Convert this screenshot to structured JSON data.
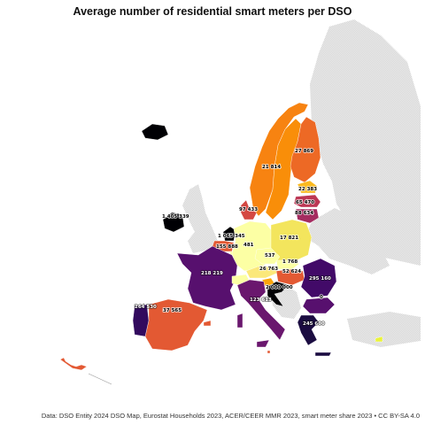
{
  "title": "Average number of residential smart meters per DSO",
  "footer": "Data: DSO Entity 2024 DSO Map, Eurostat Households 2023, ACER/CEER MMR 2023, smart meter share 2023 • CC BY-SA 4.0",
  "colors": {
    "no_data": "#e3e3e3",
    "land_out": "#dcdcdc",
    "sea": "#ffffff"
  },
  "map_data": {
    "type": "choropleth",
    "regions": [
      {
        "id": "ireland",
        "value": "1 405 339",
        "color": "#000004"
      },
      {
        "id": "iceland",
        "value": "",
        "color": "#000004"
      },
      {
        "id": "norway",
        "value": "21 814",
        "color": "#f78311"
      },
      {
        "id": "sweden",
        "value": "",
        "color": "#f98e09"
      },
      {
        "id": "finland",
        "value": "27 869",
        "color": "#ed6925"
      },
      {
        "id": "estonia",
        "value": "22 383",
        "color": "#fbb91f"
      },
      {
        "id": "latvia",
        "value": "65 470",
        "color": "#bc3754"
      },
      {
        "id": "lithuania",
        "value": "88 634",
        "color": "#a52c60"
      },
      {
        "id": "denmark",
        "value": "97 433",
        "color": "#d44842"
      },
      {
        "id": "netherlands",
        "value": "1 065 345",
        "color": "#000004"
      },
      {
        "id": "belgium",
        "value": "155 888",
        "color": "#e35933"
      },
      {
        "id": "luxembourg",
        "value": "",
        "color": "#fcffa4"
      },
      {
        "id": "germany",
        "value": "481",
        "color": "#fcffa4"
      },
      {
        "id": "poland",
        "value": "17 821",
        "color": "#f3e55d"
      },
      {
        "id": "czechia",
        "value": "537",
        "color": "#fcffa4"
      },
      {
        "id": "slovakia",
        "value": "1 768",
        "color": "#fcffa4"
      },
      {
        "id": "austria",
        "value": "",
        "color": "#fbe87a"
      },
      {
        "id": "hungary",
        "value": "52 624",
        "color": "#e35933"
      },
      {
        "id": "slovenia",
        "value": "26 763",
        "color": "#fca50a"
      },
      {
        "id": "croatia",
        "value": "",
        "color": "#000004"
      },
      {
        "id": "romania",
        "value": "295 160",
        "color": "#420a68"
      },
      {
        "id": "bulgaria",
        "value": "",
        "color": "#57106e"
      },
      {
        "id": "france",
        "value": "218 219",
        "color": "#57106e"
      },
      {
        "id": "switzerland",
        "value": "",
        "color": "#fcffa4"
      },
      {
        "id": "italy",
        "value": "123 613",
        "color": "#6a176e"
      },
      {
        "id": "spain",
        "value": "37 565",
        "color": "#e35933"
      },
      {
        "id": "portugal",
        "value": "264 530",
        "color": "#320a5e"
      },
      {
        "id": "greece",
        "value": "",
        "color": "#1b0c41"
      },
      {
        "id": "cyprus",
        "value": "0",
        "color": "#eaf33a"
      },
      {
        "id": "malta",
        "value": "",
        "color": "#e35933"
      },
      {
        "id": "baltic_label",
        "value": "0",
        "color": "#fcffa4"
      }
    ]
  }
}
